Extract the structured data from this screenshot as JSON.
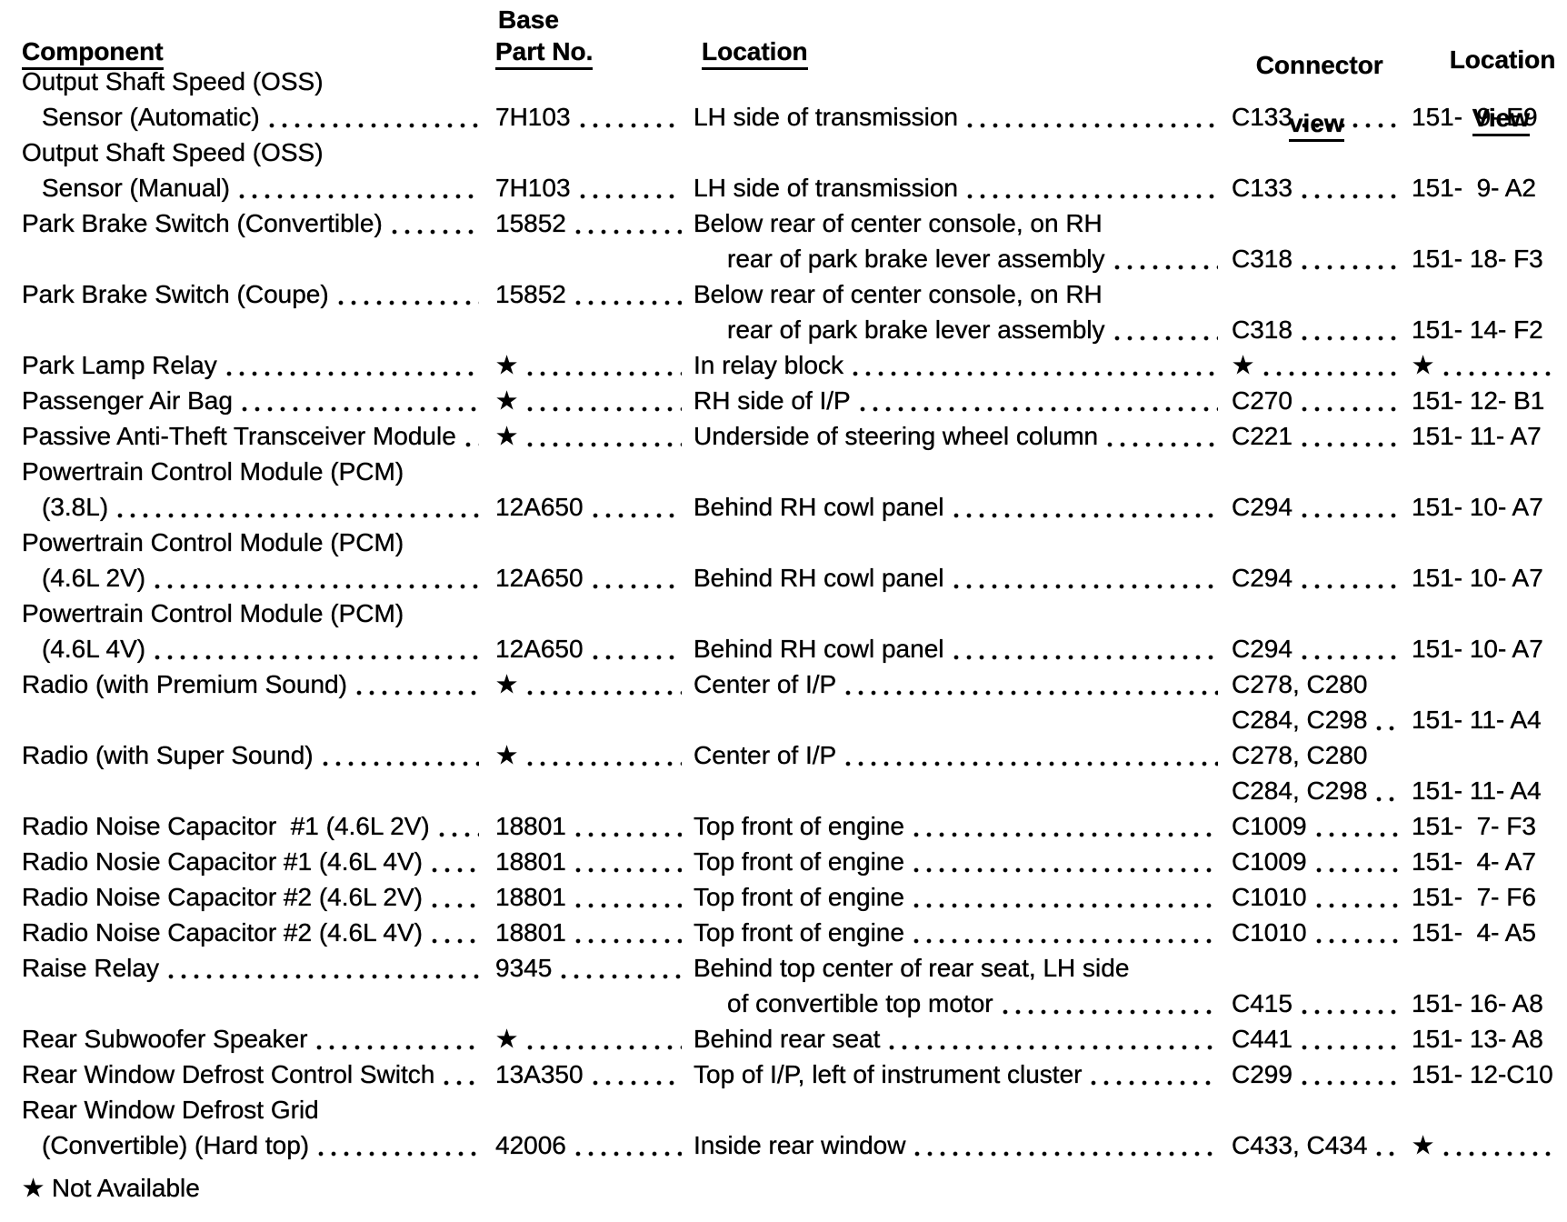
{
  "headers": {
    "base": "Base",
    "component": "Component",
    "part_no": "Part No.",
    "location": "Location",
    "connector": "Connector",
    "connector_view": "view",
    "location_view_top": "Location",
    "location_view_bottom": "View"
  },
  "footnote_symbol": "★",
  "table": {
    "lines": [
      {
        "cells": [
          {
            "col": "comp",
            "text": "Output Shaft Speed (OSS)"
          }
        ]
      },
      {
        "cells": [
          {
            "col": "comp",
            "text": "Sensor (Automatic)",
            "indent": true,
            "leader": true
          },
          {
            "col": "part",
            "text": "7H103",
            "leader": true
          },
          {
            "col": "loc",
            "text": "LH side of transmission",
            "leader": true
          },
          {
            "col": "conn",
            "text": "C133",
            "leader": true
          },
          {
            "col": "view",
            "text": "151-  9- E9"
          }
        ]
      },
      {
        "cells": [
          {
            "col": "comp",
            "text": "Output Shaft Speed (OSS)"
          }
        ]
      },
      {
        "cells": [
          {
            "col": "comp",
            "text": "Sensor (Manual)",
            "indent": true,
            "leader": true
          },
          {
            "col": "part",
            "text": "7H103",
            "leader": true
          },
          {
            "col": "loc",
            "text": "LH side of transmission",
            "leader": true
          },
          {
            "col": "conn",
            "text": "C133",
            "leader": true
          },
          {
            "col": "view",
            "text": "151-  9- A2"
          }
        ]
      },
      {
        "cells": [
          {
            "col": "comp",
            "text": "Park Brake Switch (Convertible)",
            "leader": true
          },
          {
            "col": "part",
            "text": "15852",
            "leader": true
          },
          {
            "col": "loc",
            "text": "Below rear of center console, on RH"
          }
        ]
      },
      {
        "cells": [
          {
            "col": "loc",
            "text": "rear of park brake lever assembly",
            "indent": true,
            "leader": true
          },
          {
            "col": "conn",
            "text": "C318",
            "leader": true
          },
          {
            "col": "view",
            "text": "151- 18- F3"
          }
        ]
      },
      {
        "cells": [
          {
            "col": "comp",
            "text": "Park Brake Switch (Coupe)",
            "leader": true
          },
          {
            "col": "part",
            "text": "15852",
            "leader": true
          },
          {
            "col": "loc",
            "text": "Below rear of center console, on RH"
          }
        ]
      },
      {
        "cells": [
          {
            "col": "loc",
            "text": "rear of park brake lever assembly",
            "indent": true,
            "leader": true
          },
          {
            "col": "conn",
            "text": "C318",
            "leader": true
          },
          {
            "col": "view",
            "text": "151- 14- F2"
          }
        ]
      },
      {
        "cells": [
          {
            "col": "comp",
            "text": "Park Lamp Relay",
            "leader": true
          },
          {
            "col": "part",
            "text": "★",
            "leader": true
          },
          {
            "col": "loc",
            "text": "In relay block",
            "leader": true
          },
          {
            "col": "conn",
            "text": "★",
            "leader": true
          },
          {
            "col": "view",
            "text": "★",
            "leader": true
          }
        ]
      },
      {
        "cells": [
          {
            "col": "comp",
            "text": "Passenger Air Bag",
            "leader": true
          },
          {
            "col": "part",
            "text": "★",
            "leader": true
          },
          {
            "col": "loc",
            "text": "RH side of I/P",
            "leader": true
          },
          {
            "col": "conn",
            "text": "C270",
            "leader": true
          },
          {
            "col": "view",
            "text": "151- 12- B1"
          }
        ]
      },
      {
        "cells": [
          {
            "col": "comp",
            "text": "Passive Anti-Theft Transceiver Module",
            "leader": true
          },
          {
            "col": "part",
            "text": "★",
            "leader": true
          },
          {
            "col": "loc",
            "text": "Underside of steering wheel column",
            "leader": true
          },
          {
            "col": "conn",
            "text": "C221",
            "leader": true
          },
          {
            "col": "view",
            "text": "151- 11- A7"
          }
        ]
      },
      {
        "cells": [
          {
            "col": "comp",
            "text": "Powertrain Control Module (PCM)"
          }
        ]
      },
      {
        "cells": [
          {
            "col": "comp",
            "text": "(3.8L)",
            "indent": true,
            "leader": true
          },
          {
            "col": "part",
            "text": "12A650",
            "leader": true
          },
          {
            "col": "loc",
            "text": "Behind RH cowl panel",
            "leader": true
          },
          {
            "col": "conn",
            "text": "C294",
            "leader": true
          },
          {
            "col": "view",
            "text": "151- 10- A7"
          }
        ]
      },
      {
        "cells": [
          {
            "col": "comp",
            "text": "Powertrain Control Module (PCM)"
          }
        ]
      },
      {
        "cells": [
          {
            "col": "comp",
            "text": "(4.6L 2V)",
            "indent": true,
            "leader": true
          },
          {
            "col": "part",
            "text": "12A650",
            "leader": true
          },
          {
            "col": "loc",
            "text": "Behind RH cowl panel",
            "leader": true
          },
          {
            "col": "conn",
            "text": "C294",
            "leader": true
          },
          {
            "col": "view",
            "text": "151- 10- A7"
          }
        ]
      },
      {
        "cells": [
          {
            "col": "comp",
            "text": "Powertrain Control Module (PCM)"
          }
        ]
      },
      {
        "cells": [
          {
            "col": "comp",
            "text": "(4.6L 4V)",
            "indent": true,
            "leader": true
          },
          {
            "col": "part",
            "text": "12A650",
            "leader": true
          },
          {
            "col": "loc",
            "text": "Behind RH cowl panel",
            "leader": true
          },
          {
            "col": "conn",
            "text": "C294",
            "leader": true
          },
          {
            "col": "view",
            "text": "151- 10- A7"
          }
        ]
      },
      {
        "cells": [
          {
            "col": "comp",
            "text": "Radio (with Premium Sound)",
            "leader": true
          },
          {
            "col": "part",
            "text": "★",
            "leader": true
          },
          {
            "col": "loc",
            "text": "Center of I/P",
            "leader": true
          },
          {
            "col": "conn",
            "text": "C278, C280"
          }
        ]
      },
      {
        "cells": [
          {
            "col": "conn",
            "text": "C284, C298",
            "leader": true
          },
          {
            "col": "view",
            "text": "151- 11- A4"
          }
        ]
      },
      {
        "cells": [
          {
            "col": "comp",
            "text": "Radio (with Super Sound)",
            "leader": true
          },
          {
            "col": "part",
            "text": "★",
            "leader": true
          },
          {
            "col": "loc",
            "text": "Center of I/P",
            "leader": true
          },
          {
            "col": "conn",
            "text": "C278, C280"
          }
        ]
      },
      {
        "cells": [
          {
            "col": "conn",
            "text": "C284, C298",
            "leader": true
          },
          {
            "col": "view",
            "text": "151- 11- A4"
          }
        ]
      },
      {
        "cells": [
          {
            "col": "comp",
            "text": "Radio Noise Capacitor  #1 (4.6L 2V)",
            "leader": true
          },
          {
            "col": "part",
            "text": "18801",
            "leader": true
          },
          {
            "col": "loc",
            "text": "Top front of engine",
            "leader": true
          },
          {
            "col": "conn",
            "text": "C1009",
            "leader": true
          },
          {
            "col": "view",
            "text": "151-  7- F3"
          }
        ]
      },
      {
        "cells": [
          {
            "col": "comp",
            "text": "Radio Nosie Capacitor #1 (4.6L 4V)",
            "leader": true
          },
          {
            "col": "part",
            "text": "18801",
            "leader": true
          },
          {
            "col": "loc",
            "text": "Top front of engine",
            "leader": true
          },
          {
            "col": "conn",
            "text": "C1009",
            "leader": true
          },
          {
            "col": "view",
            "text": "151-  4- A7"
          }
        ]
      },
      {
        "cells": [
          {
            "col": "comp",
            "text": "Radio Noise Capacitor #2 (4.6L 2V)",
            "leader": true
          },
          {
            "col": "part",
            "text": "18801",
            "leader": true
          },
          {
            "col": "loc",
            "text": "Top front of engine",
            "leader": true
          },
          {
            "col": "conn",
            "text": "C1010",
            "leader": true
          },
          {
            "col": "view",
            "text": "151-  7- F6"
          }
        ]
      },
      {
        "cells": [
          {
            "col": "comp",
            "text": "Radio Noise Capacitor #2 (4.6L 4V)",
            "leader": true
          },
          {
            "col": "part",
            "text": "18801",
            "leader": true
          },
          {
            "col": "loc",
            "text": "Top front of engine",
            "leader": true
          },
          {
            "col": "conn",
            "text": "C1010",
            "leader": true
          },
          {
            "col": "view",
            "text": "151-  4- A5"
          }
        ]
      },
      {
        "cells": [
          {
            "col": "comp",
            "text": "Raise Relay",
            "leader": true
          },
          {
            "col": "part",
            "text": "9345",
            "leader": true
          },
          {
            "col": "loc",
            "text": "Behind top center of rear seat, LH side"
          }
        ]
      },
      {
        "cells": [
          {
            "col": "loc",
            "text": "of convertible top motor",
            "indent": true,
            "leader": true
          },
          {
            "col": "conn",
            "text": "C415",
            "leader": true
          },
          {
            "col": "view",
            "text": "151- 16- A8"
          }
        ]
      },
      {
        "cells": [
          {
            "col": "comp",
            "text": "Rear Subwoofer Speaker",
            "leader": true
          },
          {
            "col": "part",
            "text": "★",
            "leader": true
          },
          {
            "col": "loc",
            "text": "Behind rear seat",
            "leader": true
          },
          {
            "col": "conn",
            "text": "C441",
            "leader": true
          },
          {
            "col": "view",
            "text": "151- 13- A8"
          }
        ]
      },
      {
        "cells": [
          {
            "col": "comp",
            "text": "Rear Window Defrost Control Switch",
            "leader": true
          },
          {
            "col": "part",
            "text": "13A350",
            "leader": true
          },
          {
            "col": "loc",
            "text": "Top of I/P, left of instrument cluster",
            "leader": true
          },
          {
            "col": "conn",
            "text": "C299",
            "leader": true
          },
          {
            "col": "view",
            "text": "151- 12-C10"
          }
        ]
      },
      {
        "cells": [
          {
            "col": "comp",
            "text": "Rear Window Defrost Grid"
          }
        ]
      },
      {
        "cells": [
          {
            "col": "comp",
            "text": "(Convertible) (Hard top)",
            "indent": true,
            "leader": true
          },
          {
            "col": "part",
            "text": "42006",
            "leader": true
          },
          {
            "col": "loc",
            "text": "Inside rear window",
            "leader": true
          },
          {
            "col": "conn",
            "text": "C433, C434",
            "leader": true
          },
          {
            "col": "view",
            "text": "★",
            "leader": true
          }
        ]
      },
      {
        "footnote": true,
        "cells": [
          {
            "col": "comp",
            "text": "★ Not Available",
            "name": "footnote"
          }
        ]
      }
    ]
  }
}
